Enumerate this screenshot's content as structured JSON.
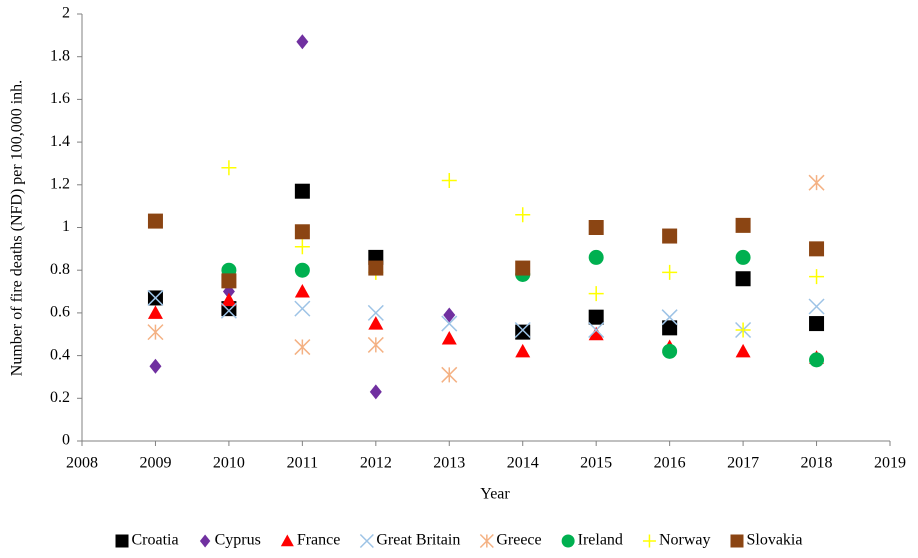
{
  "chart_data": {
    "type": "scatter",
    "y_label": "Number of fire deaths (NFD) per 100,000 inh.",
    "x_label": "Year",
    "x": [
      2009,
      2010,
      2011,
      2012,
      2013,
      2014,
      2015,
      2016,
      2017,
      2018
    ],
    "series": [
      {
        "name": "Croatia",
        "color": "#000000",
        "marker": "square",
        "values": [
          0.67,
          0.62,
          1.17,
          0.86,
          null,
          0.51,
          0.58,
          0.53,
          0.76,
          0.55
        ]
      },
      {
        "name": "Cyprus",
        "color": "#7030a0",
        "marker": "diamond",
        "values": [
          0.35,
          0.7,
          1.87,
          0.23,
          0.59,
          null,
          null,
          null,
          null,
          null
        ]
      },
      {
        "name": "France",
        "color": "#ff0000",
        "marker": "triangle",
        "values": [
          0.6,
          0.66,
          0.7,
          0.55,
          0.48,
          0.42,
          0.5,
          0.44,
          0.42,
          0.39
        ]
      },
      {
        "name": "Great Britain",
        "color": "#9dc3e6",
        "marker": "x",
        "values": [
          0.67,
          0.61,
          0.62,
          0.6,
          0.55,
          0.52,
          0.52,
          0.58,
          0.52,
          0.63
        ]
      },
      {
        "name": "Greece",
        "color": "#f4b183",
        "marker": "star",
        "values": [
          0.51,
          null,
          0.44,
          0.45,
          0.31,
          null,
          null,
          null,
          null,
          1.21
        ]
      },
      {
        "name": "Ireland",
        "color": "#00b050",
        "marker": "circle",
        "values": [
          null,
          0.8,
          0.8,
          null,
          null,
          0.78,
          0.86,
          0.42,
          0.86,
          0.38
        ]
      },
      {
        "name": "Norway",
        "color": "#ffff00",
        "marker": "plus",
        "values": [
          null,
          1.28,
          0.91,
          0.79,
          1.22,
          1.06,
          0.69,
          0.79,
          0.52,
          0.77
        ]
      },
      {
        "name": "Slovakia",
        "color": "#8b4513",
        "marker": "square",
        "values": [
          1.03,
          0.75,
          0.98,
          0.81,
          null,
          0.81,
          1.0,
          0.96,
          1.01,
          0.9
        ]
      }
    ],
    "xlim": [
      2008,
      2019
    ],
    "xticks": [
      2008,
      2009,
      2010,
      2011,
      2012,
      2013,
      2014,
      2015,
      2016,
      2017,
      2018,
      2019
    ],
    "ylim": [
      0,
      2
    ],
    "yticks": [
      0,
      0.2,
      0.4,
      0.6,
      0.8,
      1,
      1.2,
      1.4,
      1.6,
      1.8,
      2
    ],
    "grid": false,
    "legend": "bottom"
  }
}
